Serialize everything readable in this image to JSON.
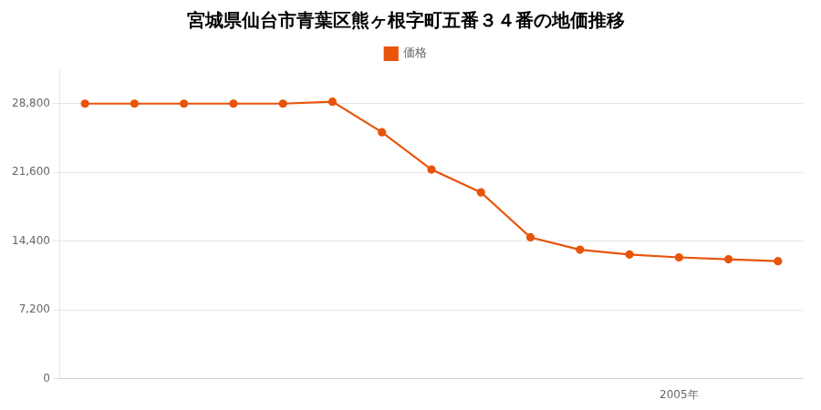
{
  "chart_data": {
    "type": "line",
    "title": "宮城県仙台市青葉区熊ヶ根字町五番３４番の地価推移",
    "x": [
      1993,
      1994,
      1995,
      1996,
      1997,
      1998,
      1999,
      2000,
      2001,
      2002,
      2003,
      2004,
      2005,
      2006,
      2007
    ],
    "series": [
      {
        "name": "価格",
        "color": "#e8540a",
        "marker": "circle",
        "values": [
          28800,
          28800,
          28800,
          28800,
          28800,
          29000,
          25800,
          21900,
          19500,
          14800,
          13500,
          13000,
          12700,
          12500,
          12300
        ]
      }
    ],
    "xlim": [
      1992.5,
      2007.5
    ],
    "xticks": [
      {
        "value": 2005,
        "label": "2005年"
      }
    ],
    "ylim": [
      0,
      32400
    ],
    "yticks": [
      0,
      {
        "value": 7200,
        "label": "7,200"
      },
      {
        "value": 14400,
        "label": "14,400"
      },
      {
        "value": 21600,
        "label": "21,600"
      },
      {
        "value": 28800,
        "label": "28,800"
      }
    ],
    "grid": "y",
    "legend": "top"
  }
}
